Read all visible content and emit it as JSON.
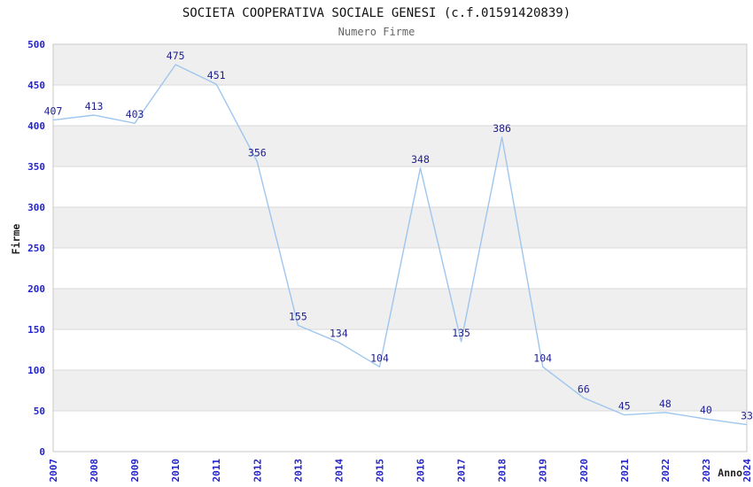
{
  "chart_data": {
    "type": "line",
    "title": "SOCIETA COOPERATIVA SOCIALE GENESI (c.f.01591420839)",
    "subtitle": "Numero Firme",
    "xlabel": "Anno",
    "ylabel": "Firme",
    "categories": [
      "2007",
      "2008",
      "2009",
      "2010",
      "2011",
      "2012",
      "2013",
      "2014",
      "2015",
      "2016",
      "2017",
      "2018",
      "2019",
      "2020",
      "2021",
      "2022",
      "2023",
      "2024"
    ],
    "values": [
      407,
      413,
      403,
      475,
      451,
      356,
      155,
      134,
      104,
      348,
      135,
      386,
      104,
      66,
      45,
      48,
      40,
      33
    ],
    "ylim": [
      0,
      500
    ],
    "ytick_step": 50,
    "grid": true,
    "legend_position": "none",
    "colors": {
      "line": "#9ec6ef",
      "point_label": "#1f1f8f",
      "tick_label": "#2323cc",
      "band_fill": "#efefef",
      "grid_line": "#d8d8d8",
      "plot_border": "#c8c8c8",
      "title_text": "#111111",
      "subtitle_text": "#666666",
      "axis_name_text": "#222222",
      "background": "#ffffff"
    },
    "layout": {
      "plot_left": 60,
      "plot_top": 50,
      "plot_right": 843,
      "plot_bottom": 510,
      "x_labels_rotated_degrees": -90,
      "alternating_bands": true
    }
  }
}
